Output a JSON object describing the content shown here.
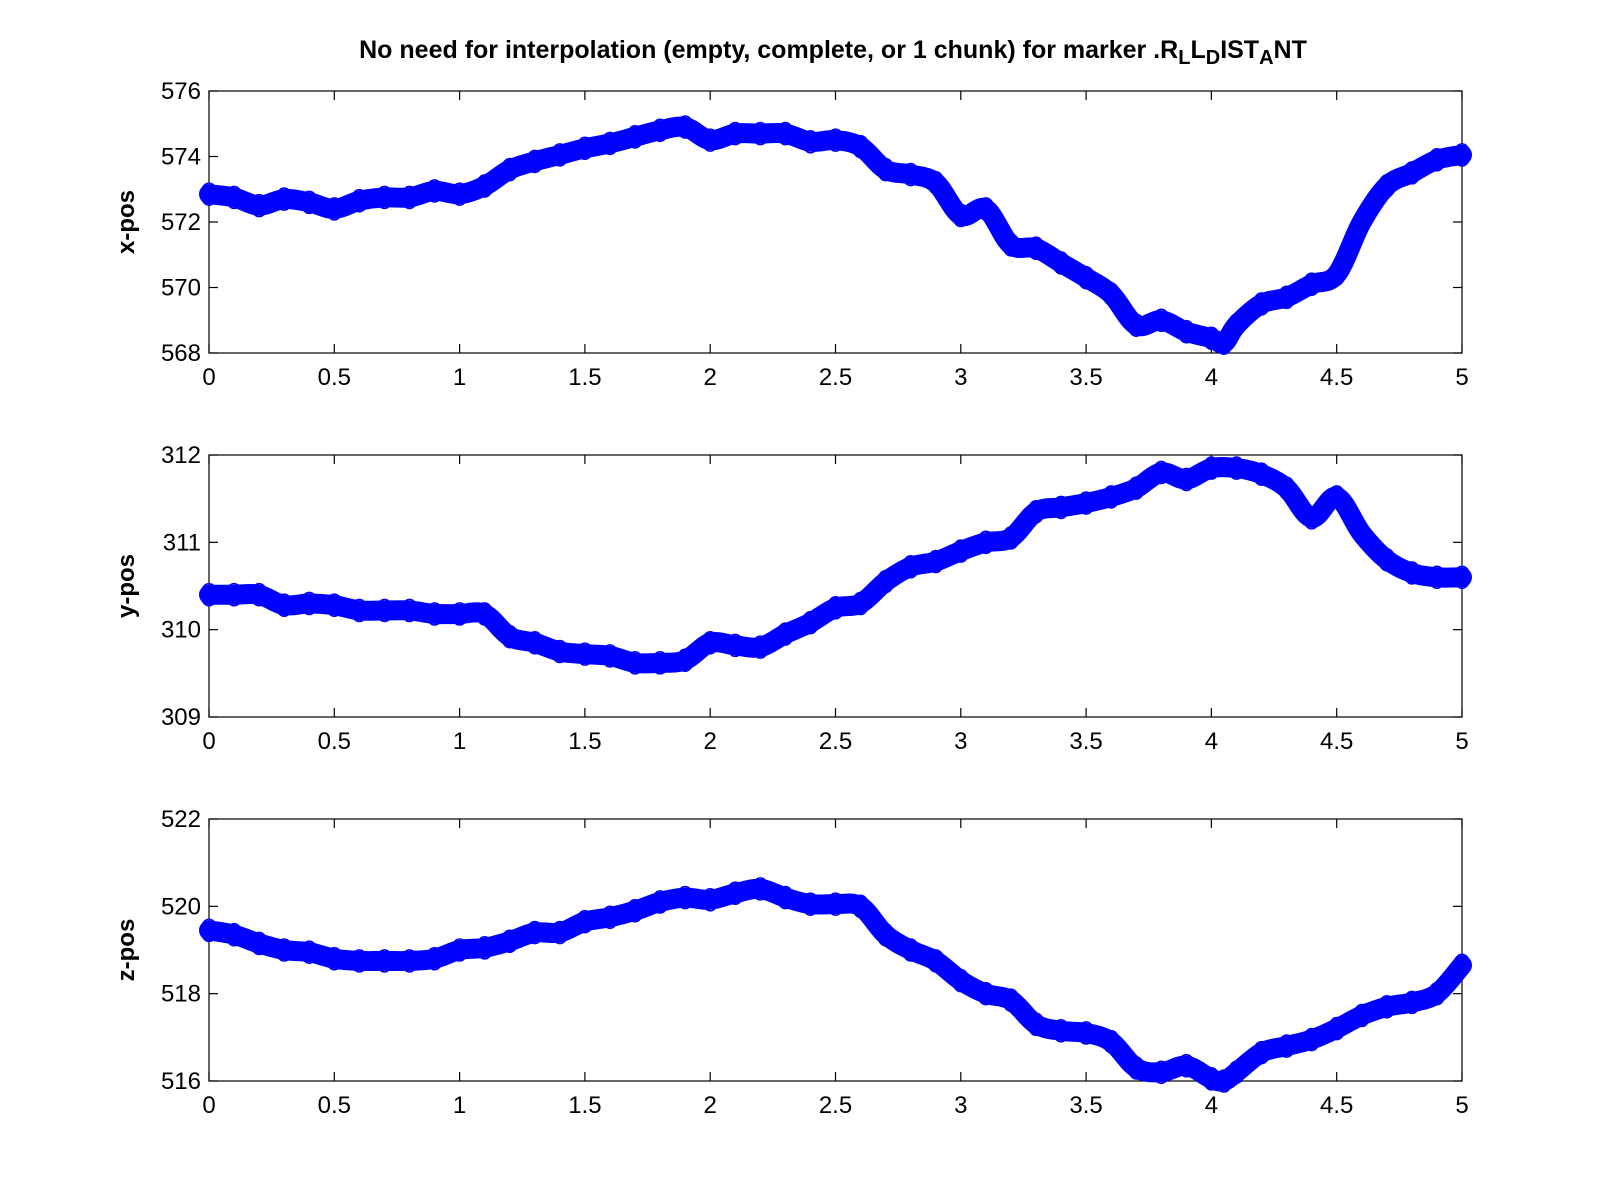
{
  "title": {
    "parts": [
      {
        "text": "No need for interpolation (empty, complete, or 1 chunk) for marker .R",
        "sub": false
      },
      {
        "text": "L",
        "sub": true
      },
      {
        "text": "L",
        "sub": false
      },
      {
        "text": "D",
        "sub": true
      },
      {
        "text": "IST",
        "sub": false
      },
      {
        "text": "A",
        "sub": true
      },
      {
        "text": "NT",
        "sub": false
      }
    ]
  },
  "style": {
    "series_color": "#0000ff",
    "axes_color": "#000000",
    "background": "#ffffff"
  },
  "chart_data": [
    {
      "type": "scatter",
      "ylabel": "x-pos",
      "xlim": [
        0,
        5
      ],
      "ylim": [
        568,
        576
      ],
      "xticks": [
        "0",
        "0.5",
        "1",
        "1.5",
        "2",
        "2.5",
        "3",
        "3.5",
        "4",
        "4.5",
        "5"
      ],
      "yticks": [
        "568",
        "570",
        "572",
        "574",
        "576"
      ],
      "grid": false,
      "marker": "circle",
      "series": [
        {
          "x": [
            0,
            0.1,
            0.2,
            0.3,
            0.4,
            0.5,
            0.6,
            0.7,
            0.8,
            0.9,
            1.0,
            1.1,
            1.2,
            1.3,
            1.4,
            1.5,
            1.6,
            1.7,
            1.8,
            1.9,
            2.0,
            2.1,
            2.2,
            2.3,
            2.4,
            2.5,
            2.6,
            2.7,
            2.8,
            2.9,
            3.0,
            3.1,
            3.2,
            3.3,
            3.4,
            3.5,
            3.6,
            3.7,
            3.8,
            3.9,
            4.0,
            4.05,
            4.1,
            4.2,
            4.3,
            4.4,
            4.5,
            4.6,
            4.7,
            4.8,
            4.9,
            5.0
          ],
          "y": [
            572.85,
            572.75,
            572.5,
            572.7,
            572.6,
            572.4,
            572.65,
            572.75,
            572.75,
            572.95,
            572.85,
            573.1,
            573.6,
            573.85,
            574.05,
            574.25,
            574.4,
            574.6,
            574.8,
            574.9,
            574.5,
            574.7,
            574.7,
            574.7,
            574.45,
            574.5,
            574.3,
            573.6,
            573.45,
            573.2,
            572.2,
            572.4,
            571.3,
            571.2,
            570.75,
            570.3,
            569.8,
            568.85,
            569.0,
            568.65,
            568.45,
            568.3,
            568.85,
            569.5,
            569.7,
            570.1,
            570.4,
            572.0,
            573.1,
            573.5,
            573.9,
            574.05
          ]
        }
      ]
    },
    {
      "type": "scatter",
      "ylabel": "y-pos",
      "xlim": [
        0,
        5
      ],
      "ylim": [
        309,
        312
      ],
      "xticks": [
        "0",
        "0.5",
        "1",
        "1.5",
        "2",
        "2.5",
        "3",
        "3.5",
        "4",
        "4.5",
        "5"
      ],
      "yticks": [
        "309",
        "310",
        "311",
        "312"
      ],
      "grid": false,
      "marker": "circle",
      "series": [
        {
          "x": [
            0,
            0.1,
            0.2,
            0.3,
            0.4,
            0.5,
            0.6,
            0.7,
            0.8,
            0.9,
            1.0,
            1.1,
            1.2,
            1.3,
            1.4,
            1.5,
            1.6,
            1.7,
            1.8,
            1.9,
            2.0,
            2.1,
            2.2,
            2.3,
            2.4,
            2.5,
            2.6,
            2.7,
            2.8,
            2.9,
            3.0,
            3.1,
            3.2,
            3.3,
            3.4,
            3.5,
            3.6,
            3.7,
            3.8,
            3.9,
            4.0,
            4.1,
            4.2,
            4.3,
            4.4,
            4.5,
            4.6,
            4.7,
            4.8,
            4.9,
            5.0
          ],
          "y": [
            310.4,
            310.4,
            310.4,
            310.28,
            310.3,
            310.28,
            310.22,
            310.22,
            310.22,
            310.18,
            310.18,
            310.18,
            309.92,
            309.85,
            309.75,
            309.72,
            309.7,
            309.62,
            309.62,
            309.65,
            309.85,
            309.82,
            309.8,
            309.95,
            310.08,
            310.25,
            310.3,
            310.55,
            310.72,
            310.78,
            310.9,
            311.0,
            311.05,
            311.35,
            311.4,
            311.45,
            311.52,
            311.62,
            311.8,
            311.72,
            311.85,
            311.85,
            311.78,
            311.62,
            311.28,
            311.52,
            311.1,
            310.8,
            310.65,
            310.6,
            310.6
          ]
        }
      ]
    },
    {
      "type": "scatter",
      "ylabel": "z-pos",
      "xlim": [
        0,
        5
      ],
      "ylim": [
        516,
        522
      ],
      "xticks": [
        "0",
        "0.5",
        "1",
        "1.5",
        "2",
        "2.5",
        "3",
        "3.5",
        "4",
        "4.5",
        "5"
      ],
      "yticks": [
        "516",
        "518",
        "520",
        "522"
      ],
      "grid": false,
      "marker": "circle",
      "series": [
        {
          "x": [
            0,
            0.1,
            0.2,
            0.3,
            0.4,
            0.5,
            0.6,
            0.7,
            0.8,
            0.9,
            1.0,
            1.1,
            1.2,
            1.3,
            1.4,
            1.5,
            1.6,
            1.7,
            1.8,
            1.9,
            2.0,
            2.1,
            2.2,
            2.3,
            2.4,
            2.5,
            2.6,
            2.7,
            2.8,
            2.9,
            3.0,
            3.1,
            3.2,
            3.3,
            3.4,
            3.5,
            3.6,
            3.7,
            3.8,
            3.9,
            4.0,
            4.05,
            4.1,
            4.2,
            4.3,
            4.4,
            4.5,
            4.6,
            4.7,
            4.8,
            4.9,
            5.0
          ],
          "y": [
            519.45,
            519.35,
            519.15,
            519.0,
            518.95,
            518.8,
            518.75,
            518.75,
            518.75,
            518.8,
            519.0,
            519.05,
            519.2,
            519.4,
            519.4,
            519.65,
            519.75,
            519.9,
            520.1,
            520.2,
            520.15,
            520.3,
            520.4,
            520.2,
            520.05,
            520.05,
            520.0,
            519.35,
            519.0,
            518.75,
            518.3,
            518.0,
            517.85,
            517.3,
            517.15,
            517.1,
            516.9,
            516.3,
            516.2,
            516.35,
            516.05,
            516.0,
            516.2,
            516.65,
            516.8,
            516.95,
            517.2,
            517.5,
            517.7,
            517.8,
            518.0,
            518.65
          ]
        }
      ]
    }
  ]
}
